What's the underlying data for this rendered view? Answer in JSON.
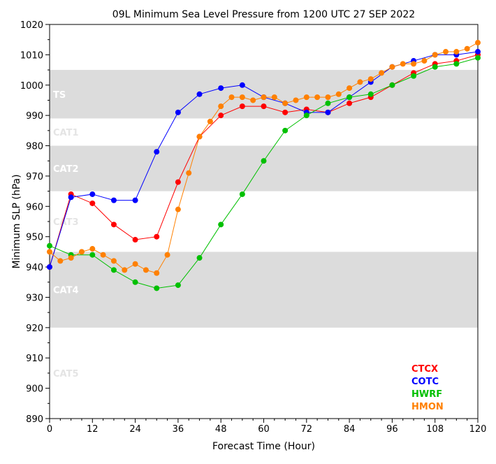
{
  "chart_data": {
    "type": "line",
    "title": "09L Minimum Sea Level Pressure from 1200 UTC 27 SEP 2022",
    "xlabel": "Forecast Time (Hour)",
    "ylabel": "Minimum SLP (hPa)",
    "xlim": [
      0,
      120
    ],
    "ylim": [
      890,
      1020
    ],
    "xticks": [
      0,
      12,
      24,
      36,
      48,
      60,
      72,
      84,
      96,
      108,
      120
    ],
    "yticks": [
      890,
      900,
      910,
      920,
      930,
      940,
      950,
      960,
      970,
      980,
      990,
      1000,
      1010,
      1020
    ],
    "grid": false,
    "legend_position": "bottom-right",
    "bands": [
      {
        "label": "TS",
        "from": 989,
        "to": 1005,
        "shaded": true
      },
      {
        "label": "CAT1",
        "from": 980,
        "to": 989,
        "shaded": false
      },
      {
        "label": "CAT2",
        "from": 965,
        "to": 980,
        "shaded": true
      },
      {
        "label": "CAT3",
        "from": 945,
        "to": 965,
        "shaded": false
      },
      {
        "label": "CAT4",
        "from": 920,
        "to": 945,
        "shaded": true
      },
      {
        "label": "CAT5",
        "from": 890,
        "to": 920,
        "shaded": false
      }
    ],
    "series": [
      {
        "name": "CTCX",
        "color": "#ff0000",
        "x": [
          0,
          6,
          12,
          18,
          24,
          30,
          36,
          42,
          48,
          54,
          60,
          66,
          72,
          78,
          84,
          90,
          96,
          102,
          108,
          114,
          120
        ],
        "y": [
          940,
          964,
          961,
          954,
          949,
          950,
          968,
          983,
          990,
          993,
          993,
          991,
          992,
          991,
          994,
          996,
          1000,
          1004,
          1007,
          1008,
          1010
        ]
      },
      {
        "name": "COTC",
        "color": "#0000ff",
        "x": [
          0,
          6,
          12,
          18,
          24,
          30,
          36,
          42,
          48,
          54,
          60,
          66,
          72,
          78,
          84,
          90,
          96,
          102,
          108,
          114,
          120
        ],
        "y": [
          940,
          963,
          964,
          962,
          962,
          978,
          991,
          997,
          999,
          1000,
          996,
          994,
          991,
          991,
          996,
          1001,
          1006,
          1008,
          1010,
          1010,
          1011
        ]
      },
      {
        "name": "HWRF",
        "color": "#00c000",
        "x": [
          0,
          6,
          12,
          18,
          24,
          30,
          36,
          42,
          48,
          54,
          60,
          66,
          72,
          78,
          84,
          90,
          96,
          102,
          108,
          114,
          120
        ],
        "y": [
          947,
          944,
          944,
          939,
          935,
          933,
          934,
          943,
          954,
          964,
          975,
          985,
          990,
          994,
          996,
          997,
          1000,
          1003,
          1006,
          1007,
          1009
        ]
      },
      {
        "name": "HMON",
        "color": "#ff8000",
        "x": [
          0,
          3,
          6,
          9,
          12,
          15,
          18,
          21,
          24,
          27,
          30,
          33,
          36,
          39,
          42,
          45,
          48,
          51,
          54,
          57,
          60,
          63,
          66,
          69,
          72,
          75,
          78,
          81,
          84,
          87,
          90,
          93,
          96,
          99,
          102,
          105,
          108,
          111,
          114,
          117,
          120
        ],
        "y": [
          945,
          942,
          943,
          945,
          946,
          944,
          942,
          939,
          941,
          939,
          938,
          944,
          959,
          971,
          983,
          988,
          993,
          996,
          996,
          995,
          996,
          996,
          994,
          995,
          996,
          996,
          996,
          997,
          999,
          1001,
          1002,
          1004,
          1006,
          1007,
          1007,
          1008,
          1010,
          1011,
          1011,
          1012,
          1014
        ]
      }
    ]
  }
}
